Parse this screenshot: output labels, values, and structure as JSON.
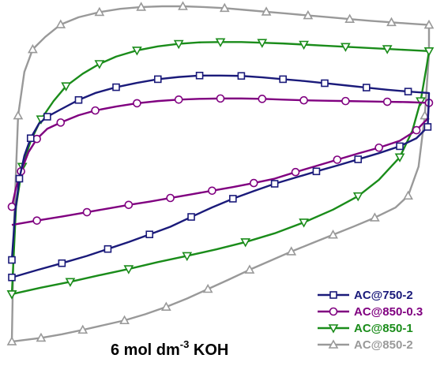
{
  "chart_data": {
    "type": "line",
    "title": "",
    "xlabel": "",
    "ylabel": "",
    "xlim": [
      0,
      1
    ],
    "ylim": [
      0,
      1
    ],
    "grid": false,
    "legend_position": "bottom-right",
    "annotation": {
      "prefix": "6 mol dm",
      "superscript": "-3",
      "suffix": " KOH"
    },
    "series": [
      {
        "name": "AC@750-2",
        "color": "#1a1a7a",
        "marker": "square",
        "marker_stride": 2,
        "points": [
          [
            0.0,
            0.304
          ],
          [
            0.008,
            0.436
          ],
          [
            0.018,
            0.527
          ],
          [
            0.03,
            0.59
          ],
          [
            0.045,
            0.638
          ],
          [
            0.065,
            0.678
          ],
          [
            0.085,
            0.697
          ],
          [
            0.117,
            0.717
          ],
          [
            0.16,
            0.743
          ],
          [
            0.2,
            0.762
          ],
          [
            0.25,
            0.778
          ],
          [
            0.3,
            0.79
          ],
          [
            0.35,
            0.8
          ],
          [
            0.4,
            0.806
          ],
          [
            0.45,
            0.81
          ],
          [
            0.5,
            0.81
          ],
          [
            0.55,
            0.809
          ],
          [
            0.6,
            0.805
          ],
          [
            0.65,
            0.8
          ],
          [
            0.7,
            0.795
          ],
          [
            0.75,
            0.789
          ],
          [
            0.8,
            0.783
          ],
          [
            0.85,
            0.777
          ],
          [
            0.9,
            0.771
          ],
          [
            0.95,
            0.766
          ],
          [
            1.0,
            0.762
          ],
          [
            0.997,
            0.669
          ],
          [
            0.97,
            0.638
          ],
          [
            0.93,
            0.616
          ],
          [
            0.88,
            0.597
          ],
          [
            0.83,
            0.58
          ],
          [
            0.78,
            0.563
          ],
          [
            0.73,
            0.547
          ],
          [
            0.68,
            0.53
          ],
          [
            0.63,
            0.513
          ],
          [
            0.58,
            0.493
          ],
          [
            0.53,
            0.472
          ],
          [
            0.48,
            0.448
          ],
          [
            0.43,
            0.422
          ],
          [
            0.38,
            0.395
          ],
          [
            0.33,
            0.374
          ],
          [
            0.28,
            0.353
          ],
          [
            0.23,
            0.334
          ],
          [
            0.18,
            0.315
          ],
          [
            0.12,
            0.295
          ],
          [
            0.06,
            0.276
          ],
          [
            0.0,
            0.256
          ]
        ]
      },
      {
        "name": "AC@850-0.3",
        "color": "#800080",
        "marker": "circle",
        "marker_stride": 2,
        "points": [
          [
            0.0,
            0.45
          ],
          [
            0.01,
            0.502
          ],
          [
            0.022,
            0.547
          ],
          [
            0.04,
            0.6
          ],
          [
            0.06,
            0.636
          ],
          [
            0.085,
            0.664
          ],
          [
            0.117,
            0.681
          ],
          [
            0.16,
            0.701
          ],
          [
            0.2,
            0.714
          ],
          [
            0.25,
            0.725
          ],
          [
            0.3,
            0.734
          ],
          [
            0.35,
            0.74
          ],
          [
            0.4,
            0.744
          ],
          [
            0.45,
            0.746
          ],
          [
            0.5,
            0.747
          ],
          [
            0.55,
            0.747
          ],
          [
            0.6,
            0.746
          ],
          [
            0.65,
            0.744
          ],
          [
            0.7,
            0.742
          ],
          [
            0.75,
            0.741
          ],
          [
            0.8,
            0.74
          ],
          [
            0.85,
            0.739
          ],
          [
            0.9,
            0.738
          ],
          [
            0.95,
            0.737
          ],
          [
            1.0,
            0.735
          ],
          [
            0.997,
            0.692
          ],
          [
            0.97,
            0.66
          ],
          [
            0.93,
            0.631
          ],
          [
            0.88,
            0.612
          ],
          [
            0.83,
            0.596
          ],
          [
            0.78,
            0.579
          ],
          [
            0.73,
            0.562
          ],
          [
            0.68,
            0.545
          ],
          [
            0.63,
            0.527
          ],
          [
            0.58,
            0.515
          ],
          [
            0.53,
            0.504
          ],
          [
            0.48,
            0.494
          ],
          [
            0.43,
            0.484
          ],
          [
            0.38,
            0.474
          ],
          [
            0.33,
            0.464
          ],
          [
            0.28,
            0.455
          ],
          [
            0.23,
            0.445
          ],
          [
            0.18,
            0.435
          ],
          [
            0.12,
            0.423
          ],
          [
            0.06,
            0.412
          ],
          [
            0.0,
            0.4
          ]
        ]
      },
      {
        "name": "AC@850-1",
        "color": "#1a8c1a",
        "marker": "triangle-down",
        "marker_stride": 2,
        "points": [
          [
            0.0,
            0.21
          ],
          [
            0.01,
            0.45
          ],
          [
            0.025,
            0.56
          ],
          [
            0.045,
            0.63
          ],
          [
            0.07,
            0.69
          ],
          [
            0.1,
            0.74
          ],
          [
            0.13,
            0.781
          ],
          [
            0.17,
            0.815
          ],
          [
            0.21,
            0.842
          ],
          [
            0.25,
            0.862
          ],
          [
            0.3,
            0.879
          ],
          [
            0.35,
            0.89
          ],
          [
            0.4,
            0.897
          ],
          [
            0.45,
            0.901
          ],
          [
            0.5,
            0.902
          ],
          [
            0.55,
            0.902
          ],
          [
            0.6,
            0.9
          ],
          [
            0.65,
            0.898
          ],
          [
            0.7,
            0.895
          ],
          [
            0.75,
            0.892
          ],
          [
            0.8,
            0.889
          ],
          [
            0.85,
            0.886
          ],
          [
            0.9,
            0.883
          ],
          [
            0.95,
            0.88
          ],
          [
            1.0,
            0.877
          ],
          [
            0.995,
            0.84
          ],
          [
            0.98,
            0.74
          ],
          [
            0.96,
            0.658
          ],
          [
            0.93,
            0.586
          ],
          [
            0.88,
            0.524
          ],
          [
            0.83,
            0.479
          ],
          [
            0.77,
            0.442
          ],
          [
            0.7,
            0.407
          ],
          [
            0.63,
            0.377
          ],
          [
            0.56,
            0.353
          ],
          [
            0.49,
            0.333
          ],
          [
            0.42,
            0.315
          ],
          [
            0.35,
            0.298
          ],
          [
            0.28,
            0.279
          ],
          [
            0.21,
            0.262
          ],
          [
            0.14,
            0.244
          ],
          [
            0.07,
            0.228
          ],
          [
            0.0,
            0.21
          ]
        ]
      },
      {
        "name": "AC@850-2",
        "color": "#999999",
        "marker": "triangle-up",
        "marker_stride": 2,
        "points": [
          [
            0.0,
            0.08
          ],
          [
            0.005,
            0.4
          ],
          [
            0.015,
            0.7
          ],
          [
            0.03,
            0.82
          ],
          [
            0.05,
            0.882
          ],
          [
            0.08,
            0.916
          ],
          [
            0.117,
            0.95
          ],
          [
            0.16,
            0.97
          ],
          [
            0.21,
            0.984
          ],
          [
            0.26,
            0.993
          ],
          [
            0.31,
            0.998
          ],
          [
            0.36,
            1.0
          ],
          [
            0.41,
            1.0
          ],
          [
            0.46,
            0.998
          ],
          [
            0.51,
            0.995
          ],
          [
            0.56,
            0.99
          ],
          [
            0.61,
            0.985
          ],
          [
            0.66,
            0.98
          ],
          [
            0.71,
            0.975
          ],
          [
            0.76,
            0.97
          ],
          [
            0.81,
            0.965
          ],
          [
            0.86,
            0.96
          ],
          [
            0.91,
            0.956
          ],
          [
            0.96,
            0.952
          ],
          [
            1.0,
            0.949
          ],
          [
            1.0,
            0.87
          ],
          [
            0.99,
            0.7
          ],
          [
            0.975,
            0.56
          ],
          [
            0.95,
            0.48
          ],
          [
            0.92,
            0.448
          ],
          [
            0.87,
            0.42
          ],
          [
            0.82,
            0.396
          ],
          [
            0.77,
            0.373
          ],
          [
            0.72,
            0.35
          ],
          [
            0.67,
            0.327
          ],
          [
            0.62,
            0.302
          ],
          [
            0.57,
            0.277
          ],
          [
            0.52,
            0.25
          ],
          [
            0.47,
            0.224
          ],
          [
            0.42,
            0.198
          ],
          [
            0.37,
            0.175
          ],
          [
            0.32,
            0.155
          ],
          [
            0.27,
            0.138
          ],
          [
            0.22,
            0.125
          ],
          [
            0.17,
            0.112
          ],
          [
            0.12,
            0.1
          ],
          [
            0.07,
            0.09
          ],
          [
            0.0,
            0.08
          ]
        ]
      }
    ]
  }
}
